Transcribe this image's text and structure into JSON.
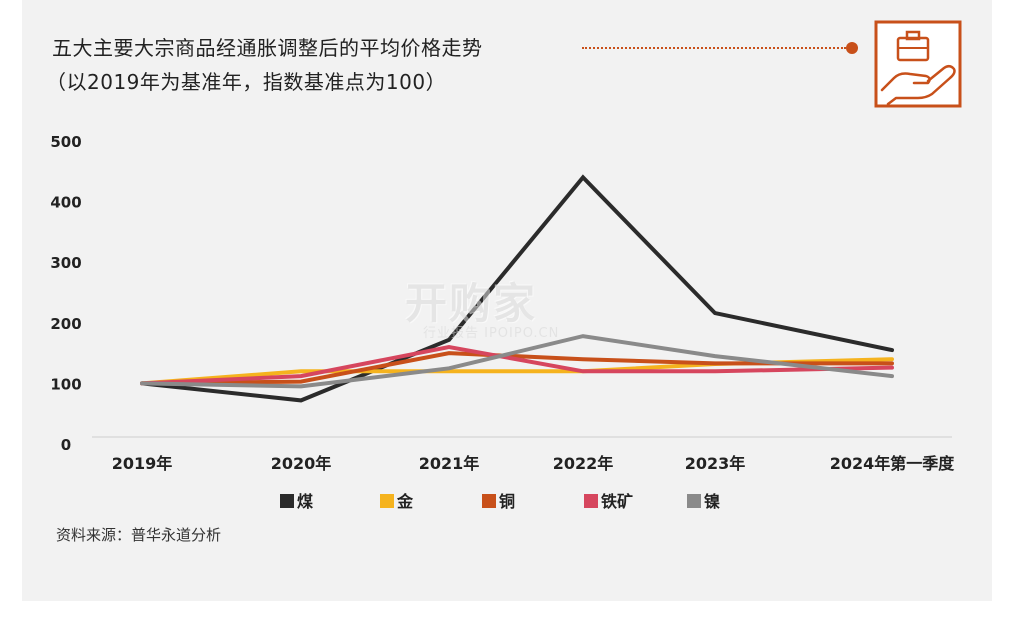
{
  "header": {
    "title": "五大主要大宗商品经通胀调整后的平均价格走势",
    "subtitle": "（以2019年为基准年，指数基准点为100）"
  },
  "icon": "briefcase-in-hand-icon",
  "accent_color": "#c8501a",
  "source": "资料来源：普华永道分析",
  "watermark": {
    "main": "开购家",
    "sub": "行业报告 IPOIPO.CN"
  },
  "chart_data": {
    "type": "line",
    "categories": [
      "2019年",
      "2020年",
      "2021年",
      "2022年",
      "2023年",
      "2024年第一季度"
    ],
    "ylim": [
      0,
      500
    ],
    "yticks": [
      "0",
      "100",
      "200",
      "300",
      "400",
      "500"
    ],
    "grid": false,
    "legend_position": "bottom",
    "series": [
      {
        "name": "煤",
        "color": "#2b2b2b",
        "values": [
          100,
          72,
          172,
          440,
          216,
          155
        ]
      },
      {
        "name": "金",
        "color": "#f5b31e",
        "values": [
          100,
          120,
          120,
          120,
          132,
          140
        ]
      },
      {
        "name": "铜",
        "color": "#c8501a",
        "values": [
          100,
          103,
          150,
          140,
          133,
          133
        ]
      },
      {
        "name": "铁矿",
        "color": "#d6465e",
        "values": [
          100,
          112,
          160,
          120,
          120,
          126
        ]
      },
      {
        "name": "镍",
        "color": "#8a8a8a",
        "values": [
          100,
          95,
          125,
          178,
          145,
          112
        ]
      }
    ]
  }
}
